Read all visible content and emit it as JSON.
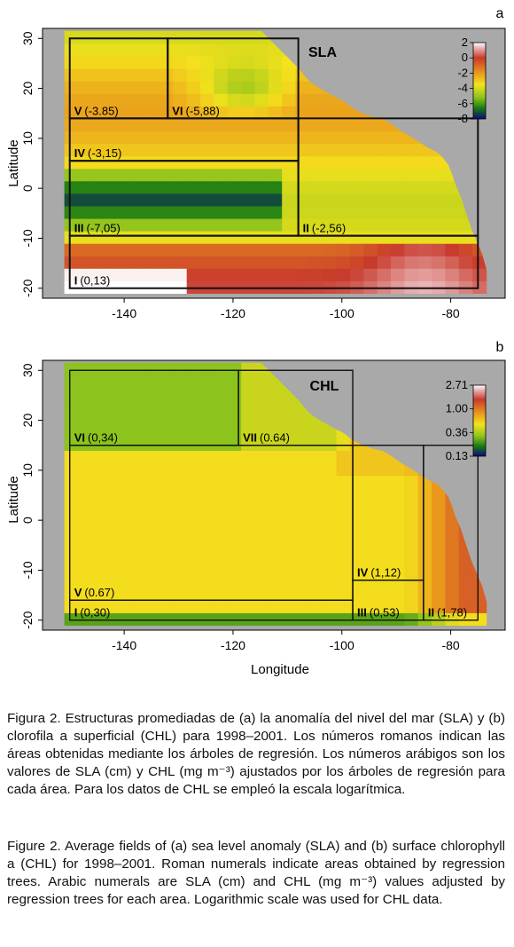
{
  "chart_data": [
    {
      "type": "heatmap",
      "panel_letter": "a",
      "title": "SLA",
      "xlabel": "",
      "ylabel": "Latitude",
      "xlim": [
        -155,
        -70
      ],
      "ylim": [
        -22,
        32
      ],
      "x_ticks": [
        -140,
        -120,
        -100,
        -80
      ],
      "x_tick_labels": [
        "-140",
        "-120",
        "-100",
        "-80"
      ],
      "y_ticks": [
        -20,
        -10,
        0,
        10,
        20,
        30
      ],
      "y_tick_labels": [
        "-20",
        "-10",
        "0",
        "10",
        "20",
        "30"
      ],
      "colorbar": {
        "ticks": [
          2,
          0,
          -2,
          -4,
          -6,
          -8
        ],
        "tick_labels": [
          "2",
          "0",
          "-2",
          "-4",
          "-6",
          "-8"
        ],
        "range": [
          -8,
          2
        ]
      },
      "regions": [
        {
          "label": "I",
          "value_label": "(0,13)",
          "lon": [
            -150,
            -75
          ],
          "lat": [
            -20,
            -9.5
          ]
        },
        {
          "label": "II",
          "value_label": "(-2,56)",
          "lon": [
            -108,
            -75
          ],
          "lat": [
            -9.5,
            14
          ]
        },
        {
          "label": "III",
          "value_label": "(-7,05)",
          "lon": [
            -150,
            -108
          ],
          "lat": [
            -9.5,
            5.5
          ]
        },
        {
          "label": "IV",
          "value_label": "(-3,15)",
          "lon": [
            -150,
            -108
          ],
          "lat": [
            5.5,
            14
          ]
        },
        {
          "label": "V",
          "value_label": "(-3.85)",
          "lon": [
            -150,
            -132
          ],
          "lat": [
            14,
            30
          ]
        },
        {
          "label": "VI",
          "value_label": "(-5,88)",
          "lon": [
            -132,
            -108
          ],
          "lat": [
            14,
            30
          ]
        }
      ]
    },
    {
      "type": "heatmap",
      "panel_letter": "b",
      "title": "CHL",
      "xlabel": "Longitude",
      "ylabel": "Latitude",
      "xlim": [
        -155,
        -70
      ],
      "ylim": [
        -22,
        32
      ],
      "x_ticks": [
        -140,
        -120,
        -100,
        -80
      ],
      "x_tick_labels": [
        "-140",
        "-120",
        "-100",
        "-80"
      ],
      "y_ticks": [
        -20,
        -10,
        0,
        10,
        20,
        30
      ],
      "y_tick_labels": [
        "-20",
        "-10",
        "0",
        "10",
        "20",
        "30"
      ],
      "colorbar": {
        "ticks": [
          2.71,
          1.0,
          0.36,
          0.13
        ],
        "tick_labels": [
          "2.71",
          "1.00",
          "0.36",
          "0.13"
        ],
        "scale": "log"
      },
      "regions": [
        {
          "label": "I",
          "value_label": "(0,30)",
          "lon": [
            -150,
            -98
          ],
          "lat": [
            -20,
            -16
          ]
        },
        {
          "label": "II",
          "value_label": "(1,78)",
          "lon": [
            -85,
            -75
          ],
          "lat": [
            -20,
            15
          ]
        },
        {
          "label": "III",
          "value_label": "(0,53)",
          "lon": [
            -98,
            -85
          ],
          "lat": [
            -20,
            -12
          ]
        },
        {
          "label": "IV",
          "value_label": "(1,12)",
          "lon": [
            -98,
            -85
          ],
          "lat": [
            -12,
            15
          ]
        },
        {
          "label": "V",
          "value_label": "(0.67)",
          "lon": [
            -150,
            -98
          ],
          "lat": [
            -16,
            15
          ]
        },
        {
          "label": "VI",
          "value_label": "(0,34)",
          "lon": [
            -150,
            -119
          ],
          "lat": [
            15,
            30
          ]
        },
        {
          "label": "VII",
          "value_label": "(0.64)",
          "lon": [
            -119,
            -98
          ],
          "lat": [
            15,
            30
          ]
        }
      ]
    }
  ],
  "caption_es": {
    "label": "Figura 2.",
    "text": "Estructuras promediadas de (a) la anomalía del nivel del mar (SLA) y (b) clorofila a superficial (CHL) para 1998–2001. Los números romanos indican las áreas obtenidas mediante los árboles de regresión. Los números arábigos son los valores de SLA (cm) y CHL (mg m⁻³) ajustados por los árboles de regresión para cada área. Para los datos de CHL se empleó la escala logarítmica."
  },
  "caption_en": {
    "label": "Figure 2.",
    "text": "Average fields of (a) sea level anomaly (SLA) and (b) surface chlorophyll a (CHL) for 1998–2001. Roman numerals indicate areas obtained by regression trees. Arabic numerals are SLA (cm) and CHL (mg m⁻³) values adjusted by regression trees for each area. Logarithmic scale was used for CHL data."
  }
}
